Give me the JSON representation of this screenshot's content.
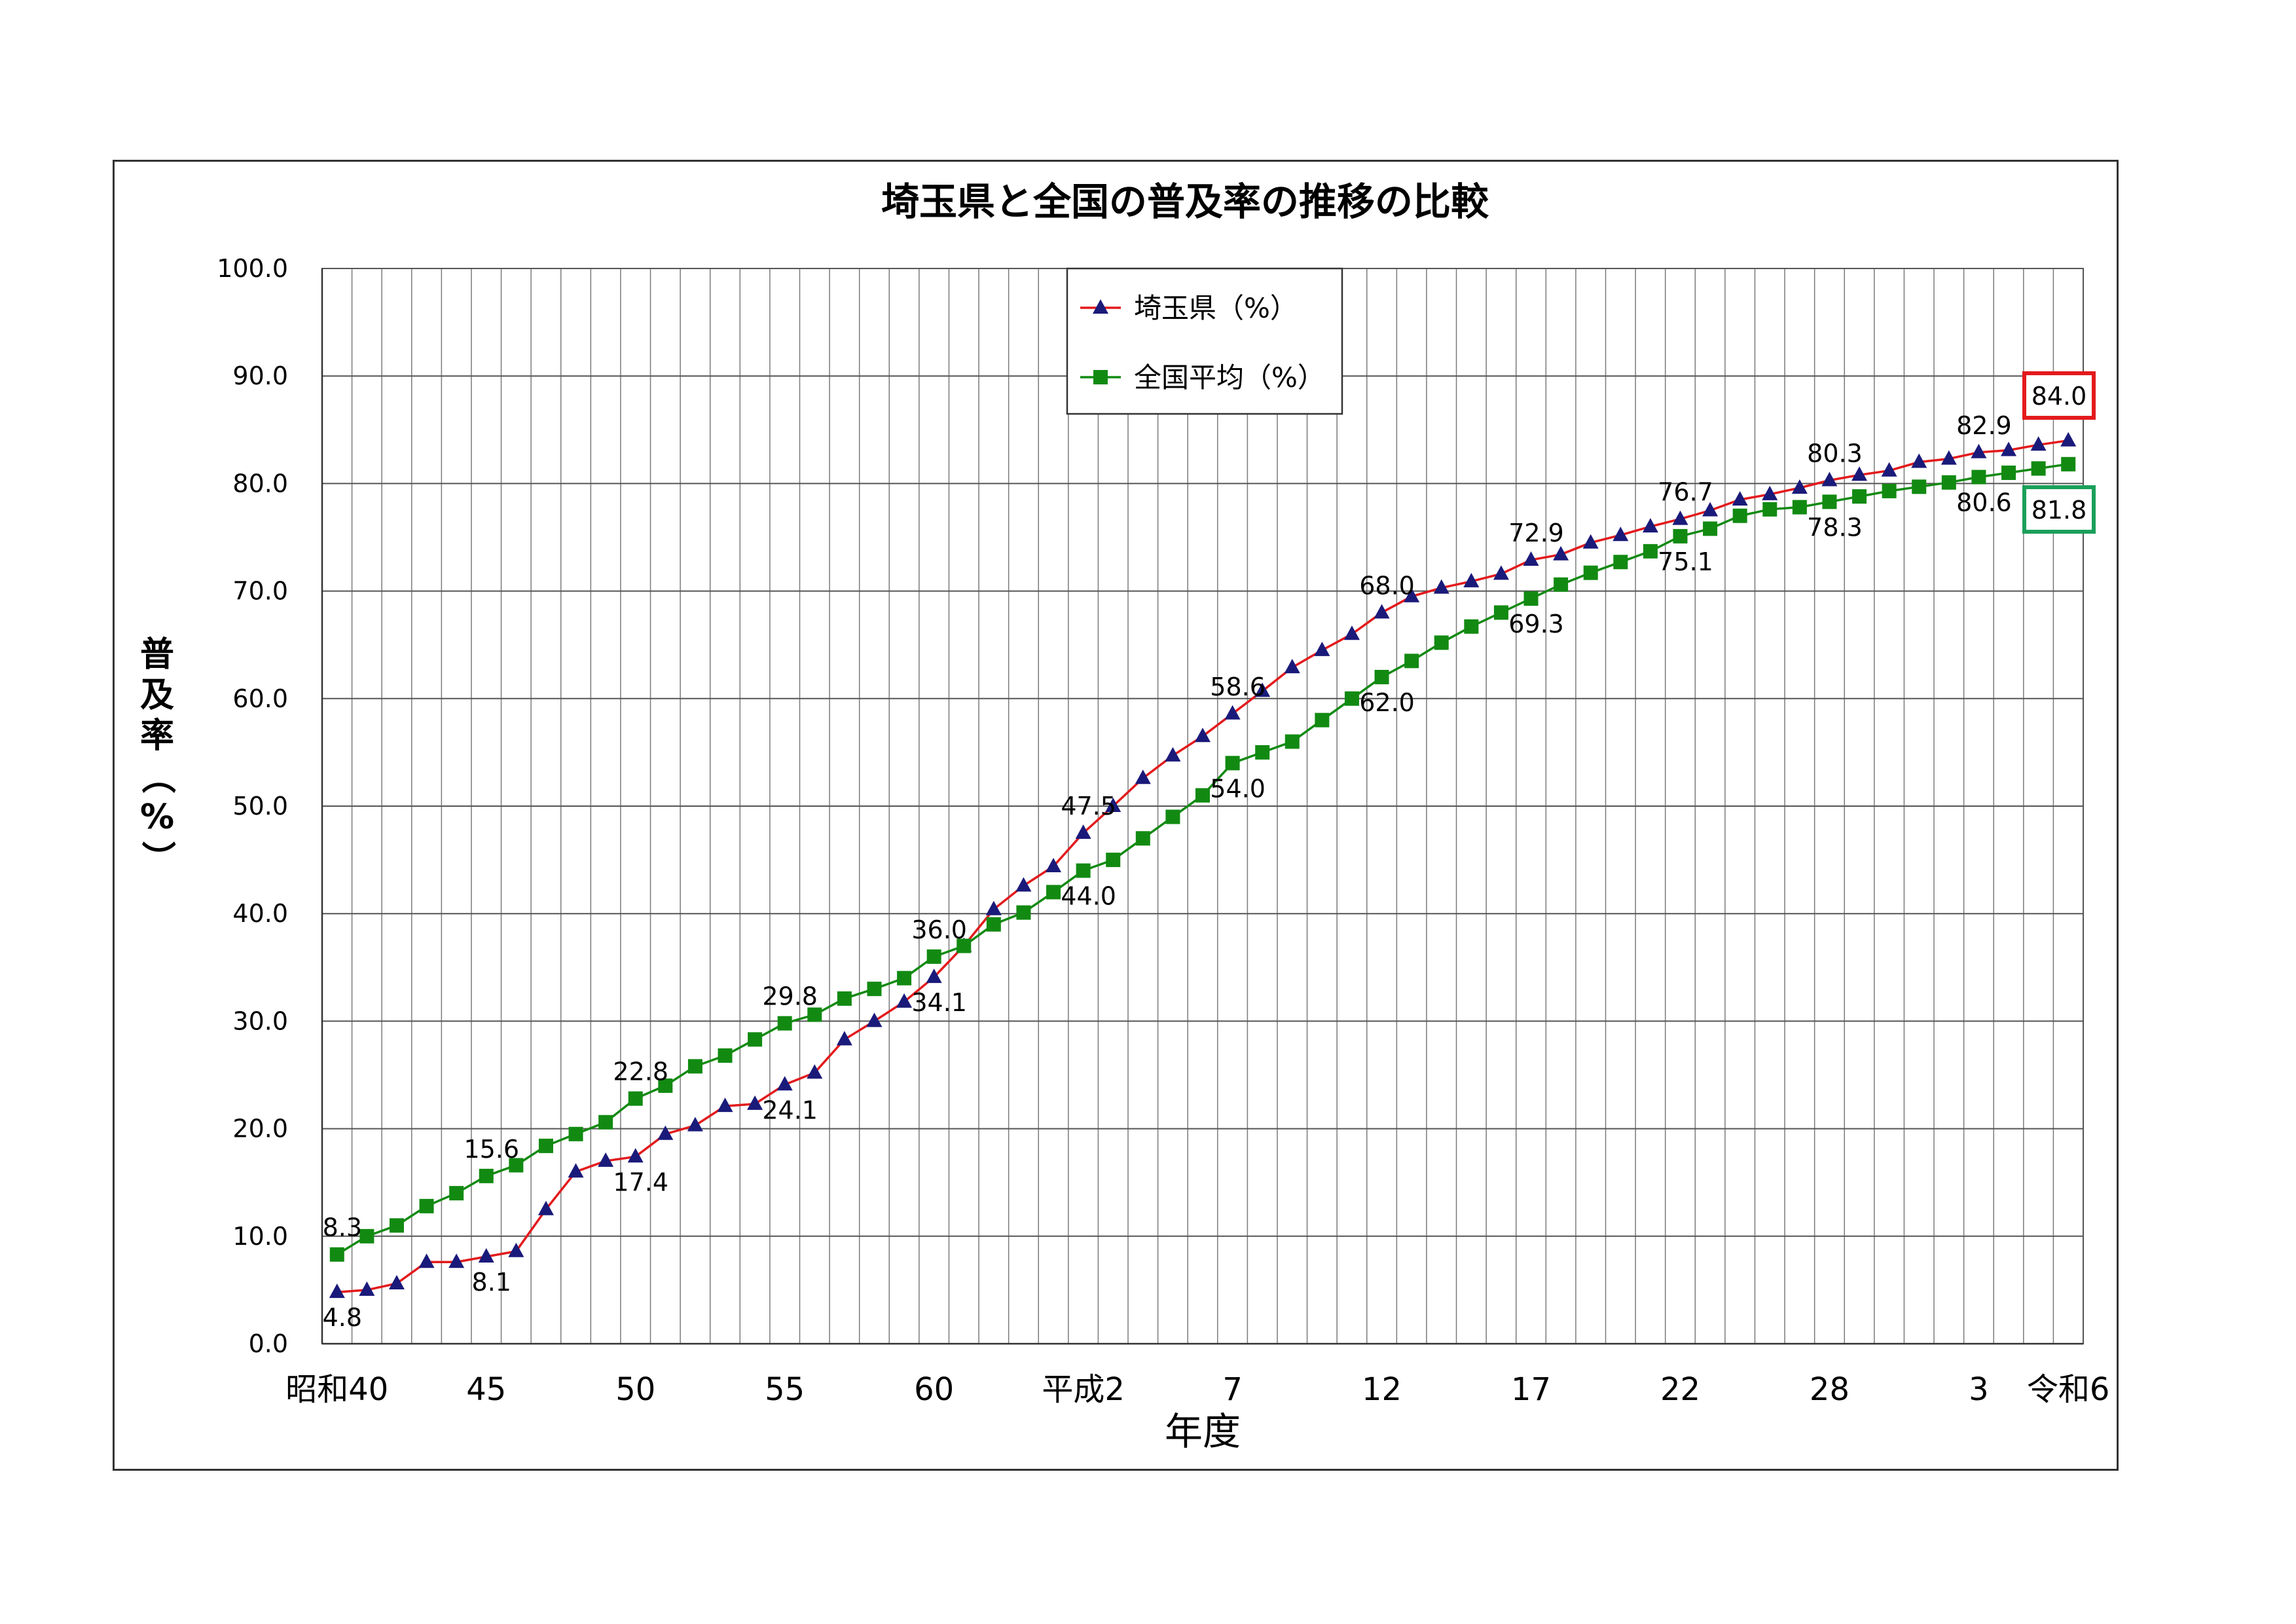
{
  "chart_data": {
    "type": "line",
    "title": "埼玉県と全国の普及率の推移の比較",
    "xlabel": "年度",
    "ylabel": "普及率（%）",
    "ylim": [
      0,
      100
    ],
    "yticks": [
      "0.0",
      "10.0",
      "20.0",
      "30.0",
      "40.0",
      "50.0",
      "60.0",
      "70.0",
      "80.0",
      "90.0",
      "100.0"
    ],
    "x_tick_labels": [
      {
        "index": 0,
        "label": "昭和40"
      },
      {
        "index": 5,
        "label": "45"
      },
      {
        "index": 10,
        "label": "50"
      },
      {
        "index": 15,
        "label": "55"
      },
      {
        "index": 20,
        "label": "60"
      },
      {
        "index": 25,
        "label": "平成2"
      },
      {
        "index": 30,
        "label": "7"
      },
      {
        "index": 35,
        "label": "12"
      },
      {
        "index": 40,
        "label": "17"
      },
      {
        "index": 45,
        "label": "22"
      },
      {
        "index": 50,
        "label": "28"
      },
      {
        "index": 55,
        "label": "3"
      },
      {
        "index": 58,
        "label": "令和6"
      }
    ],
    "grid": true,
    "legend_position": "top-left",
    "series": [
      {
        "name": "埼玉県（%）",
        "color": "#e31a1c",
        "marker_color": "#1a1a7a",
        "marker": "triangle",
        "values": [
          4.8,
          5.0,
          5.6,
          7.6,
          7.6,
          8.1,
          8.6,
          12.5,
          16.0,
          17.0,
          17.4,
          19.5,
          20.3,
          22.1,
          22.3,
          24.1,
          25.2,
          28.3,
          30.0,
          31.8,
          34.1,
          37.0,
          40.4,
          42.6,
          44.4,
          47.5,
          50.0,
          52.6,
          54.7,
          56.5,
          58.6,
          60.7,
          62.9,
          64.5,
          66.0,
          68.0,
          69.5,
          70.3,
          70.9,
          71.6,
          72.9,
          73.4,
          74.5,
          75.2,
          76.0,
          76.7,
          77.5,
          78.5,
          79.0,
          79.6,
          80.3,
          80.8,
          81.2,
          82.0,
          82.3,
          82.9,
          83.1,
          83.6,
          84.0
        ]
      },
      {
        "name": "全国平均（%）",
        "color": "#128a12",
        "marker_color": "#128a12",
        "marker": "square",
        "values": [
          8.3,
          10.0,
          11.0,
          12.8,
          14.0,
          15.6,
          16.6,
          18.4,
          19.5,
          20.6,
          22.8,
          24.0,
          25.8,
          26.8,
          28.3,
          29.8,
          30.6,
          32.1,
          33.0,
          34.0,
          36.0,
          37.0,
          39.0,
          40.1,
          42.0,
          44.0,
          45.0,
          47.0,
          49.0,
          51.0,
          54.0,
          55.0,
          56.0,
          58.0,
          60.0,
          62.0,
          63.5,
          65.2,
          66.7,
          68.0,
          69.3,
          70.6,
          71.7,
          72.7,
          73.7,
          75.1,
          75.8,
          77.0,
          77.6,
          77.8,
          78.3,
          78.8,
          79.3,
          79.7,
          80.1,
          80.6,
          81.0,
          81.4,
          81.8
        ]
      }
    ],
    "data_labels": [
      {
        "series": 0,
        "index": 0,
        "text": "4.8",
        "pos": "below"
      },
      {
        "series": 0,
        "index": 5,
        "text": "8.1",
        "pos": "below"
      },
      {
        "series": 0,
        "index": 10,
        "text": "17.4",
        "pos": "below"
      },
      {
        "series": 0,
        "index": 15,
        "text": "24.1",
        "pos": "below"
      },
      {
        "series": 0,
        "index": 20,
        "text": "34.1",
        "pos": "below"
      },
      {
        "series": 0,
        "index": 25,
        "text": "47.5",
        "pos": "above"
      },
      {
        "series": 0,
        "index": 30,
        "text": "58.6",
        "pos": "above"
      },
      {
        "series": 0,
        "index": 35,
        "text": "68.0",
        "pos": "above"
      },
      {
        "series": 0,
        "index": 40,
        "text": "72.9",
        "pos": "above"
      },
      {
        "series": 0,
        "index": 45,
        "text": "76.7",
        "pos": "above"
      },
      {
        "series": 0,
        "index": 50,
        "text": "80.3",
        "pos": "above"
      },
      {
        "series": 0,
        "index": 55,
        "text": "82.9",
        "pos": "above"
      },
      {
        "series": 0,
        "index": 58,
        "text": "84.0",
        "pos": "boxed"
      },
      {
        "series": 1,
        "index": 0,
        "text": "8.3",
        "pos": "above"
      },
      {
        "series": 1,
        "index": 5,
        "text": "15.6",
        "pos": "above"
      },
      {
        "series": 1,
        "index": 10,
        "text": "22.8",
        "pos": "above"
      },
      {
        "series": 1,
        "index": 15,
        "text": "29.8",
        "pos": "above"
      },
      {
        "series": 1,
        "index": 20,
        "text": "36.0",
        "pos": "above"
      },
      {
        "series": 1,
        "index": 25,
        "text": "44.0",
        "pos": "below"
      },
      {
        "series": 1,
        "index": 30,
        "text": "54.0",
        "pos": "below"
      },
      {
        "series": 1,
        "index": 35,
        "text": "62.0",
        "pos": "below"
      },
      {
        "series": 1,
        "index": 40,
        "text": "69.3",
        "pos": "below"
      },
      {
        "series": 1,
        "index": 45,
        "text": "75.1",
        "pos": "below"
      },
      {
        "series": 1,
        "index": 50,
        "text": "78.3",
        "pos": "below"
      },
      {
        "series": 1,
        "index": 55,
        "text": "80.6",
        "pos": "below"
      },
      {
        "series": 1,
        "index": 58,
        "text": "81.8",
        "pos": "boxed"
      }
    ],
    "box_colors": [
      "#e31a1c",
      "#1aa05a"
    ]
  }
}
